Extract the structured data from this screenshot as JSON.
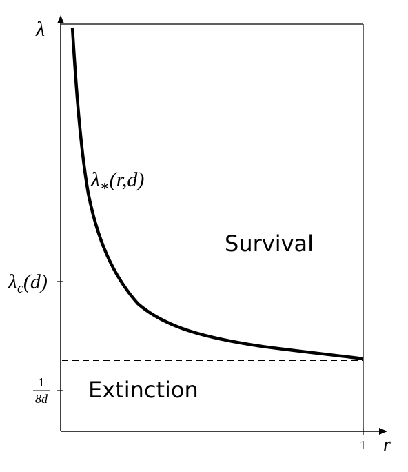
{
  "axes": {
    "y_label": "λ",
    "x_label": "r",
    "x_tick": "1"
  },
  "curve_label": {
    "base": "λ",
    "sub": "∗",
    "args": "(r,d)"
  },
  "y_ticks": [
    {
      "base": "λ",
      "sub": "c",
      "args": "(d)"
    },
    {
      "numerator": "1",
      "denominator": "8d"
    }
  ],
  "regions": {
    "upper": "Survival",
    "lower": "Extinction"
  }
}
